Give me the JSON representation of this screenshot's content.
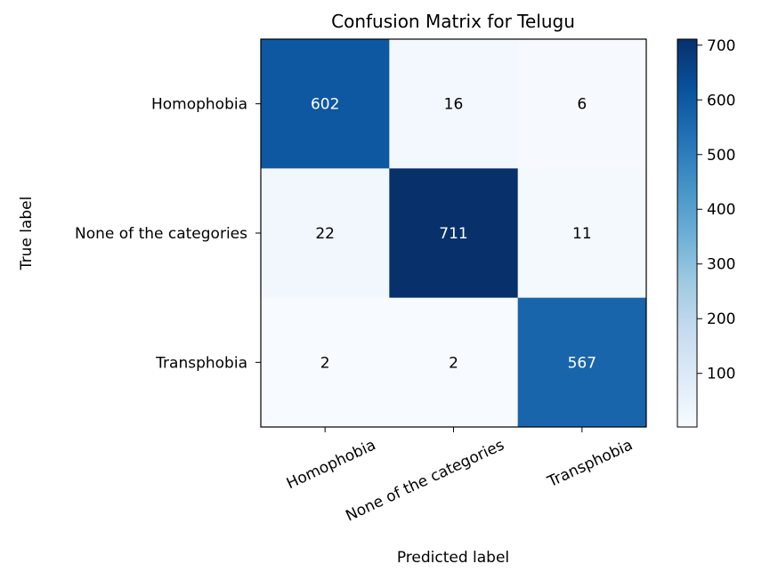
{
  "chart_data": {
    "type": "heatmap",
    "title": "Confusion Matrix for Telugu",
    "xlabel": "Predicted label",
    "ylabel": "True label",
    "x_categories": [
      "Homophobia",
      "None of the categories",
      "Transphobia"
    ],
    "y_categories": [
      "Homophobia",
      "None of the categories",
      "Transphobia"
    ],
    "matrix": [
      [
        602,
        16,
        6
      ],
      [
        22,
        711,
        11
      ],
      [
        2,
        2,
        567
      ]
    ],
    "colormap": "Blues",
    "colorbar": {
      "min": 2,
      "max": 711,
      "ticks": [
        100,
        200,
        300,
        400,
        500,
        600,
        700
      ]
    },
    "text_color_light": "#ffffff",
    "text_color_dark": "#000000"
  }
}
